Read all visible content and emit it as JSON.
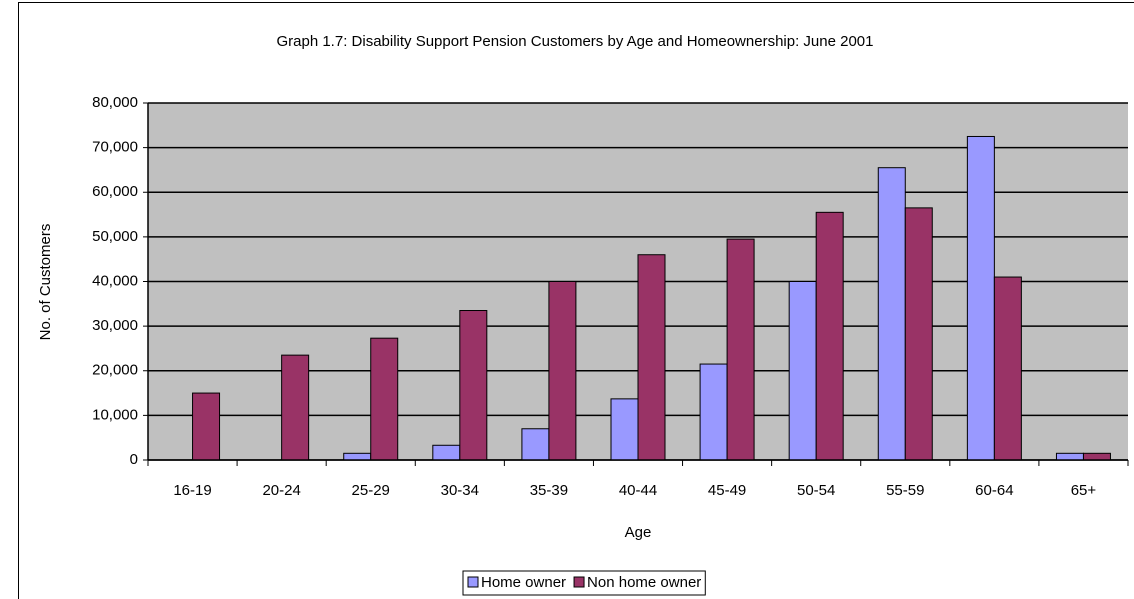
{
  "chart_data": {
    "type": "bar",
    "title": "Graph 1.7: Disability Support Pension Customers by Age and Homeownership: June 2001",
    "x_label": "Age",
    "y_label": "No. of Customers",
    "categories": [
      "16-19",
      "20-24",
      "25-29",
      "30-34",
      "35-39",
      "40-44",
      "45-49",
      "50-54",
      "55-59",
      "60-64",
      "65+"
    ],
    "series": [
      {
        "name": "Home owner",
        "color": "#9999ff",
        "values": [
          0,
          0,
          1500,
          3300,
          7000,
          13700,
          21500,
          40000,
          65500,
          72500,
          1500
        ]
      },
      {
        "name": "Non home owner",
        "color": "#993366",
        "values": [
          15000,
          23500,
          27300,
          33500,
          40000,
          46000,
          49500,
          55500,
          56500,
          41000,
          1500
        ]
      }
    ],
    "ylim": [
      0,
      80000
    ],
    "yticks": [
      0,
      {
        "value": 10000,
        "label": "10,000"
      },
      {
        "value": 20000,
        "label": "20,000"
      },
      {
        "value": 30000,
        "label": "30,000"
      },
      {
        "value": 40000,
        "label": "40,000"
      },
      {
        "value": 50000,
        "label": "50,000"
      },
      {
        "value": 60000,
        "label": "60,000"
      },
      {
        "value": 70000,
        "label": "70,000"
      },
      {
        "value": 80000,
        "label": "80,000"
      }
    ],
    "grid": true,
    "legend": "bottom",
    "plot_background": "#c0c0c0"
  }
}
